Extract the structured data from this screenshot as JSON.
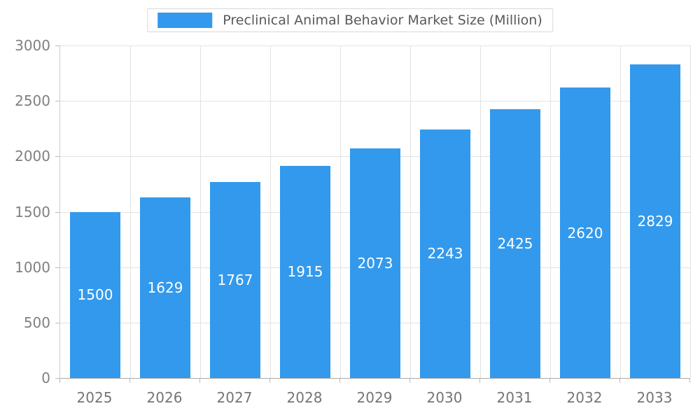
{
  "legend": {
    "title": "Preclinical Animal Behavior Market Size (Million)"
  },
  "chart_data": {
    "type": "bar",
    "title": "Preclinical Animal Behavior Market Size (Million)",
    "categories": [
      "2025",
      "2026",
      "2027",
      "2028",
      "2029",
      "2030",
      "2031",
      "2032",
      "2033"
    ],
    "values": [
      1500,
      1629,
      1767,
      1915,
      2073,
      2243,
      2425,
      2620,
      2829
    ],
    "xlabel": "",
    "ylabel": "",
    "ylim": [
      0,
      3000
    ],
    "ytick_step": 500,
    "yticks": [
      0,
      500,
      1000,
      1500,
      2000,
      2500,
      3000
    ],
    "grid": true,
    "legend_position": "top",
    "bar_color": "#3399EC",
    "value_label_color": "#FFFFFF",
    "value_labels_inside_bars": true
  },
  "colors": {
    "bar": "#3399EC",
    "grid": "#E2E2E2",
    "axis": "#AAAAAA",
    "tick_label": "#808080",
    "legend_text": "#595959"
  }
}
